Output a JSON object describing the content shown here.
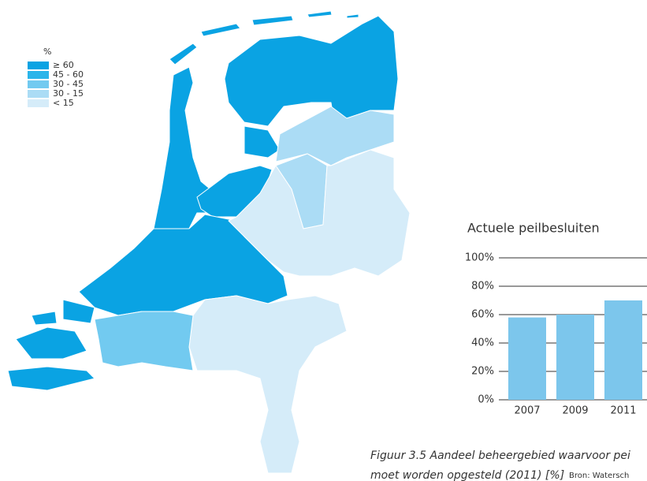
{
  "legend": {
    "title": "%",
    "items": [
      {
        "label": "≥ 60",
        "color": "#0aa3e3"
      },
      {
        "label": "45 - 60",
        "color": "#2bb5ea"
      },
      {
        "label": "30 - 45",
        "color": "#72caf0"
      },
      {
        "label": "30 - 15",
        "color": "#abdcf5"
      },
      {
        "label": "< 15",
        "color": "#d5ecf9"
      }
    ]
  },
  "chart_data": {
    "type": "bar",
    "title": "Actuele peilbesluiten",
    "categories": [
      "2007",
      "2009",
      "2011"
    ],
    "values": [
      58,
      60,
      70
    ],
    "color": "#7cc6ec",
    "ylim": [
      0,
      100
    ],
    "yticks": [
      {
        "value": 0,
        "label": "0%"
      },
      {
        "value": 20,
        "label": "20%"
      },
      {
        "value": 40,
        "label": "40%"
      },
      {
        "value": 60,
        "label": "60%"
      },
      {
        "value": 80,
        "label": "80%"
      },
      {
        "value": 100,
        "label": "100%"
      }
    ],
    "grid": true
  },
  "caption": {
    "line1": "Figuur 3.5 Aandeel beheergebied waarvoor pei",
    "line2": "moet worden opgesteld (2011) [%]",
    "source": "Bron: Watersch"
  }
}
